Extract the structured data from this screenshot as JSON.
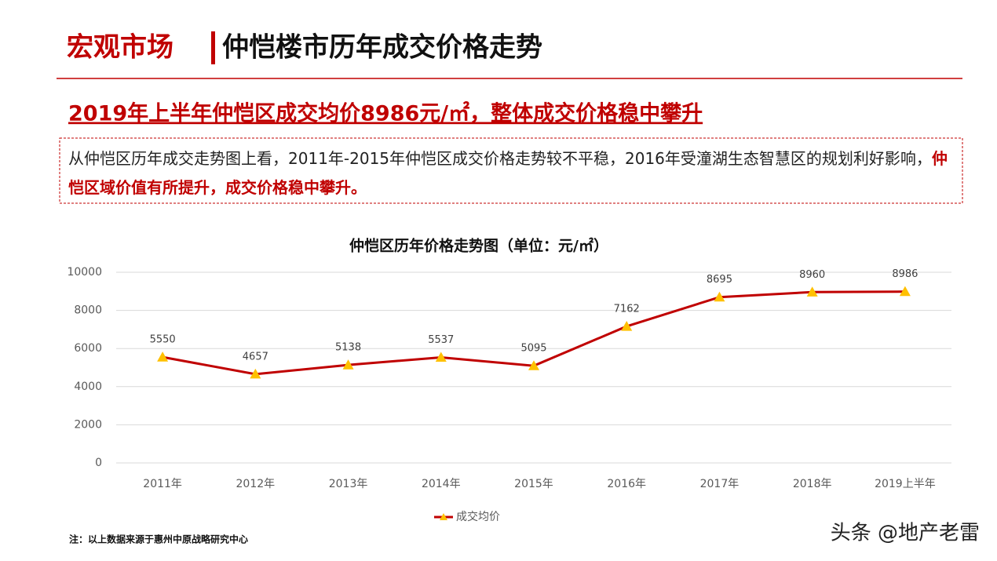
{
  "header": {
    "section": "宏观市场",
    "title": "仲恺楼市历年成交价格走势"
  },
  "subtitle": "2019年上半年仲恺区成交均价8986元/㎡，整体成交价格稳中攀升",
  "summary": {
    "text": "从仲恺区历年成交走势图上看，2011年-2015年仲恺区成交价格走势较不平稳，2016年受潼湖生态智慧区的规划利好影响，",
    "highlight": "仲恺区域价值有所提升，成交价格稳中攀升。"
  },
  "chart_data": {
    "type": "line",
    "title": "仲恺区历年价格走势图（单位：元/㎡）",
    "categories": [
      "2011年",
      "2012年",
      "2013年",
      "2014年",
      "2015年",
      "2016年",
      "2017年",
      "2018年",
      "2019上半年"
    ],
    "series": [
      {
        "name": "成交均价",
        "color": "#c00000",
        "marker_color": "#ffc000",
        "values": [
          5550,
          4657,
          5138,
          5537,
          5095,
          7162,
          8695,
          8960,
          8986
        ]
      }
    ],
    "ylim": [
      0,
      10000
    ],
    "yticks": [
      0,
      2000,
      4000,
      6000,
      8000,
      10000
    ],
    "grid": true,
    "legend": "bottom"
  },
  "note": "注：以上数据来源于惠州中原战略研究中心",
  "watermark": "头条 @地产老雷"
}
